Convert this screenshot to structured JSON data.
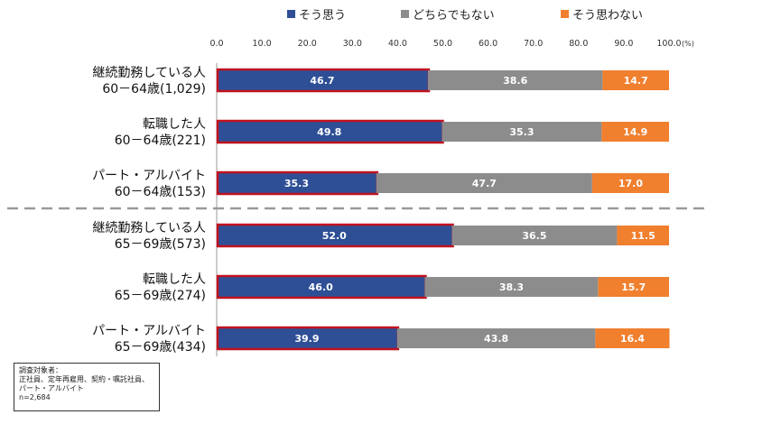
{
  "legend": {
    "items": [
      {
        "label": "そう思う",
        "color": "#2e4f96"
      },
      {
        "label": "どちらでもない",
        "color": "#8c8c8c"
      },
      {
        "label": "そう思わない",
        "color": "#f07f2e"
      }
    ]
  },
  "note": {
    "title": "調査対象者：",
    "line1": "正社員、定年再雇用、契約・嘱託社員、",
    "line2": "パート・アルバイト",
    "line3": "n=2,684"
  },
  "chart_data": {
    "type": "bar",
    "orientation": "horizontal",
    "stacked": true,
    "unit": "(%)",
    "xlim": [
      0,
      100
    ],
    "ticks": [
      "0.0",
      "10.0",
      "20.0",
      "30.0",
      "40.0",
      "50.0",
      "60.0",
      "70.0",
      "80.0",
      "90.0",
      "100.0"
    ],
    "categories": [
      [
        "継続勤務している人",
        "60－64歳(1,029)"
      ],
      [
        "転職した人",
        "60－64歳(221)"
      ],
      [
        "パート・アルバイト",
        "60－64歳(153)"
      ],
      [
        "継続勤務している人",
        "65－69歳(573)"
      ],
      [
        "転職した人",
        "65－69歳(274)"
      ],
      [
        "パート・アルバイト",
        "65－69歳(434)"
      ]
    ],
    "series": [
      {
        "name": "そう思う",
        "color": "#2e4f96",
        "values": [
          46.7,
          49.8,
          35.3,
          52.0,
          46.0,
          39.9
        ],
        "highlight_color": "#c0121f"
      },
      {
        "name": "どちらでもない",
        "color": "#8c8c8c",
        "values": [
          38.6,
          35.3,
          47.7,
          36.5,
          38.3,
          43.8
        ]
      },
      {
        "name": "そう思わない",
        "color": "#f07f2e",
        "values": [
          14.7,
          14.9,
          17.0,
          11.5,
          15.7,
          16.4
        ]
      }
    ],
    "group_divider": "dashed line between 60-64 and 65-69 age groups",
    "value_label_color": "#ffffff"
  }
}
